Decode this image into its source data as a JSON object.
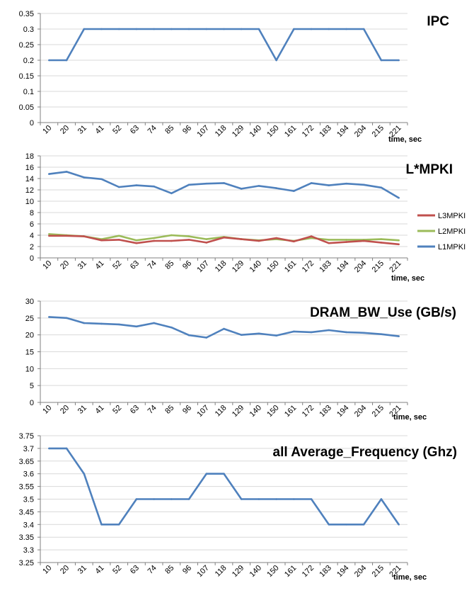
{
  "colors": {
    "L1MPKI": "#4F81BD",
    "L2MPKI": "#9BBB59",
    "L3MPKI": "#C0504D",
    "axis": "#808080",
    "grid": "#D9D9D9"
  },
  "chart_data": [
    {
      "type": "line",
      "title": "IPC",
      "xlabel": "time, sec",
      "ylim": [
        0,
        0.35
      ],
      "yticks": [
        "0",
        "0.05",
        "0.1",
        "0.15",
        "0.2",
        "0.25",
        "0.3",
        "0.35"
      ],
      "categories": [
        "10",
        "20",
        "31",
        "41",
        "52",
        "63",
        "74",
        "85",
        "96",
        "107",
        "118",
        "129",
        "140",
        "150",
        "161",
        "172",
        "183",
        "194",
        "204",
        "215",
        "221"
      ],
      "series": [
        {
          "color_key": "L1MPKI",
          "values": [
            0.2,
            0.2,
            0.3,
            0.3,
            0.3,
            0.3,
            0.3,
            0.3,
            0.3,
            0.3,
            0.3,
            0.3,
            0.3,
            0.2,
            0.3,
            0.3,
            0.3,
            0.3,
            0.3,
            0.2,
            0.2
          ]
        }
      ]
    },
    {
      "type": "line",
      "title": "L*MPKI",
      "xlabel": "time, sec",
      "ylim": [
        0,
        18
      ],
      "yticks": [
        "0",
        "2",
        "4",
        "6",
        "8",
        "10",
        "12",
        "14",
        "16",
        "18"
      ],
      "categories": [
        "10",
        "20",
        "31",
        "41",
        "52",
        "63",
        "74",
        "85",
        "96",
        "107",
        "118",
        "129",
        "140",
        "150",
        "161",
        "172",
        "183",
        "194",
        "204",
        "215",
        "221"
      ],
      "legend": [
        "L3MPKI",
        "L2MPKI",
        "L1MPKI"
      ],
      "series": [
        {
          "name": "L1MPKI",
          "color_key": "L1MPKI",
          "values": [
            14.8,
            15.2,
            14.2,
            13.9,
            12.5,
            12.8,
            12.6,
            11.4,
            12.9,
            13.1,
            13.2,
            12.2,
            12.7,
            12.3,
            11.8,
            13.2,
            12.8,
            13.1,
            12.9,
            12.4,
            10.6
          ]
        },
        {
          "name": "L2MPKI",
          "color_key": "L2MPKI",
          "values": [
            4.2,
            4.0,
            3.8,
            3.3,
            3.9,
            3.1,
            3.5,
            4.0,
            3.8,
            3.3,
            3.7,
            3.3,
            3.1,
            3.3,
            3.0,
            3.5,
            3.2,
            3.2,
            3.2,
            3.3,
            3.1
          ]
        },
        {
          "name": "L3MPKI",
          "color_key": "L3MPKI",
          "values": [
            3.9,
            3.9,
            3.8,
            3.1,
            3.2,
            2.6,
            3.0,
            3.0,
            3.2,
            2.7,
            3.6,
            3.3,
            3.0,
            3.5,
            2.9,
            3.8,
            2.6,
            2.8,
            3.0,
            2.7,
            2.4
          ]
        }
      ]
    },
    {
      "type": "line",
      "title": "DRAM_BW_Use (GB/s)",
      "xlabel": "time, sec",
      "ylim": [
        0,
        30
      ],
      "yticks": [
        "0",
        "5",
        "10",
        "15",
        "20",
        "25",
        "30"
      ],
      "categories": [
        "10",
        "20",
        "31",
        "41",
        "52",
        "63",
        "74",
        "85",
        "96",
        "107",
        "118",
        "129",
        "140",
        "150",
        "161",
        "172",
        "183",
        "194",
        "204",
        "215",
        "221"
      ],
      "series": [
        {
          "color_key": "L1MPKI",
          "values": [
            25.3,
            25.0,
            23.5,
            23.3,
            23.1,
            22.5,
            23.5,
            22.2,
            19.9,
            19.2,
            21.8,
            20.0,
            20.4,
            19.8,
            21.0,
            20.8,
            21.4,
            20.8,
            20.6,
            20.2,
            19.6
          ]
        }
      ]
    },
    {
      "type": "line",
      "title": "all Average_Frequency (Ghz)",
      "xlabel": "time, sec",
      "ylim": [
        3.25,
        3.75
      ],
      "yticks": [
        "3.25",
        "3.3",
        "3.35",
        "3.4",
        "3.45",
        "3.5",
        "3.55",
        "3.6",
        "3.65",
        "3.7",
        "3.75"
      ],
      "categories": [
        "10",
        "20",
        "31",
        "41",
        "52",
        "63",
        "74",
        "85",
        "96",
        "107",
        "118",
        "129",
        "140",
        "150",
        "161",
        "172",
        "183",
        "194",
        "204",
        "215",
        "221"
      ],
      "series": [
        {
          "color_key": "L1MPKI",
          "values": [
            3.7,
            3.7,
            3.6,
            3.4,
            3.4,
            3.5,
            3.5,
            3.5,
            3.5,
            3.6,
            3.6,
            3.5,
            3.5,
            3.5,
            3.5,
            3.5,
            3.4,
            3.4,
            3.4,
            3.5,
            3.4
          ]
        }
      ]
    }
  ]
}
